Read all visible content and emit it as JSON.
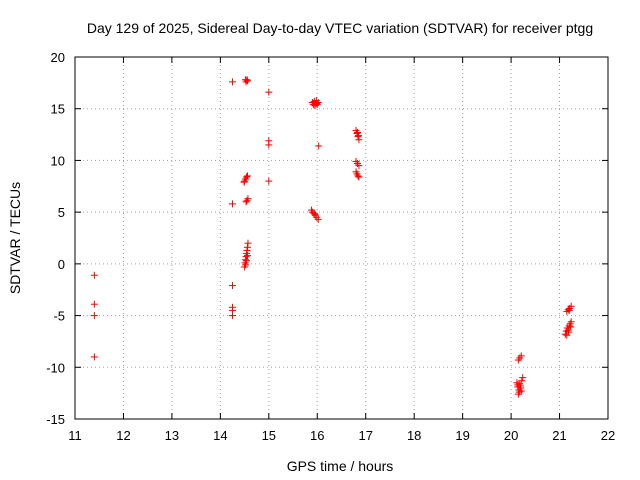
{
  "chart_data": {
    "type": "scatter",
    "title": "Day 129 of 2025, Sidereal Day-to-day VTEC variation (SDTVAR) for receiver ptgg",
    "xlabel": "GPS time / hours",
    "ylabel": "SDTVAR / TECUs",
    "xlim": [
      11,
      22
    ],
    "ylim": [
      -15,
      20
    ],
    "xticks": [
      "11",
      "12",
      "13",
      "14",
      "15",
      "16",
      "17",
      "18",
      "19",
      "20",
      "21",
      "22"
    ],
    "yticks": [
      "-15",
      "-10",
      "-5",
      "0",
      "5",
      "10",
      "15",
      "20"
    ],
    "grid": true,
    "marker": "+",
    "color": "#ff0000",
    "series": [
      {
        "name": "SDTVAR",
        "points": [
          [
            11.4,
            -1.1
          ],
          [
            11.4,
            -3.9
          ],
          [
            11.4,
            -5.0
          ],
          [
            11.4,
            -9.0
          ],
          [
            14.25,
            17.6
          ],
          [
            14.25,
            5.8
          ],
          [
            14.25,
            -2.1
          ],
          [
            14.25,
            -4.2
          ],
          [
            14.25,
            -4.5
          ],
          [
            14.25,
            -5.0
          ],
          [
            14.52,
            17.8
          ],
          [
            14.55,
            17.8
          ],
          [
            14.53,
            17.6
          ],
          [
            14.56,
            17.7
          ],
          [
            14.5,
            8.0
          ],
          [
            14.52,
            8.2
          ],
          [
            14.54,
            8.4
          ],
          [
            14.56,
            8.5
          ],
          [
            14.49,
            7.9
          ],
          [
            14.55,
            6.1
          ],
          [
            14.57,
            6.3
          ],
          [
            14.53,
            6.0
          ],
          [
            14.5,
            -0.3
          ],
          [
            14.51,
            0.1
          ],
          [
            14.52,
            0.4
          ],
          [
            14.53,
            0.7
          ],
          [
            14.54,
            1.0
          ],
          [
            14.55,
            1.3
          ],
          [
            14.56,
            1.6
          ],
          [
            14.57,
            2.0
          ],
          [
            14.52,
            -0.1
          ],
          [
            14.54,
            0.3
          ],
          [
            14.56,
            0.8
          ],
          [
            15.0,
            16.6
          ],
          [
            15.0,
            11.9
          ],
          [
            15.0,
            11.5
          ],
          [
            15.0,
            8.0
          ],
          [
            15.9,
            15.6
          ],
          [
            15.92,
            15.4
          ],
          [
            15.94,
            15.7
          ],
          [
            15.96,
            15.5
          ],
          [
            15.98,
            15.8
          ],
          [
            16.0,
            15.4
          ],
          [
            16.02,
            15.6
          ],
          [
            15.95,
            15.3
          ],
          [
            15.99,
            15.5
          ],
          [
            15.88,
            5.2
          ],
          [
            15.9,
            5.0
          ],
          [
            15.93,
            4.9
          ],
          [
            15.96,
            4.7
          ],
          [
            15.99,
            4.5
          ],
          [
            16.02,
            4.3
          ],
          [
            15.95,
            4.8
          ],
          [
            16.03,
            11.4
          ],
          [
            16.8,
            12.9
          ],
          [
            16.82,
            12.6
          ],
          [
            16.84,
            12.3
          ],
          [
            16.86,
            12.0
          ],
          [
            16.83,
            12.7
          ],
          [
            16.85,
            12.4
          ],
          [
            16.8,
            9.9
          ],
          [
            16.83,
            9.7
          ],
          [
            16.86,
            9.5
          ],
          [
            16.8,
            8.9
          ],
          [
            16.82,
            8.7
          ],
          [
            16.84,
            8.5
          ],
          [
            16.86,
            8.4
          ],
          [
            20.15,
            -9.3
          ],
          [
            20.18,
            -9.1
          ],
          [
            20.21,
            -8.9
          ],
          [
            20.12,
            -11.5
          ],
          [
            20.14,
            -11.9
          ],
          [
            20.16,
            -12.2
          ],
          [
            20.15,
            -12.6
          ],
          [
            20.18,
            -11.6
          ],
          [
            20.2,
            -12.0
          ],
          [
            20.22,
            -11.3
          ],
          [
            20.24,
            -11.0
          ],
          [
            20.14,
            -11.7
          ],
          [
            20.17,
            -12.4
          ],
          [
            20.19,
            -11.8
          ],
          [
            20.21,
            -12.3
          ],
          [
            21.15,
            -4.6
          ],
          [
            21.18,
            -4.4
          ],
          [
            21.21,
            -4.3
          ],
          [
            21.24,
            -4.1
          ],
          [
            21.2,
            -4.5
          ],
          [
            21.12,
            -6.8
          ],
          [
            21.14,
            -6.5
          ],
          [
            21.16,
            -6.2
          ],
          [
            21.18,
            -6.4
          ],
          [
            21.2,
            -6.0
          ],
          [
            21.22,
            -5.8
          ],
          [
            21.24,
            -5.6
          ],
          [
            21.15,
            -6.9
          ],
          [
            21.19,
            -6.6
          ],
          [
            21.23,
            -6.1
          ]
        ]
      }
    ]
  }
}
